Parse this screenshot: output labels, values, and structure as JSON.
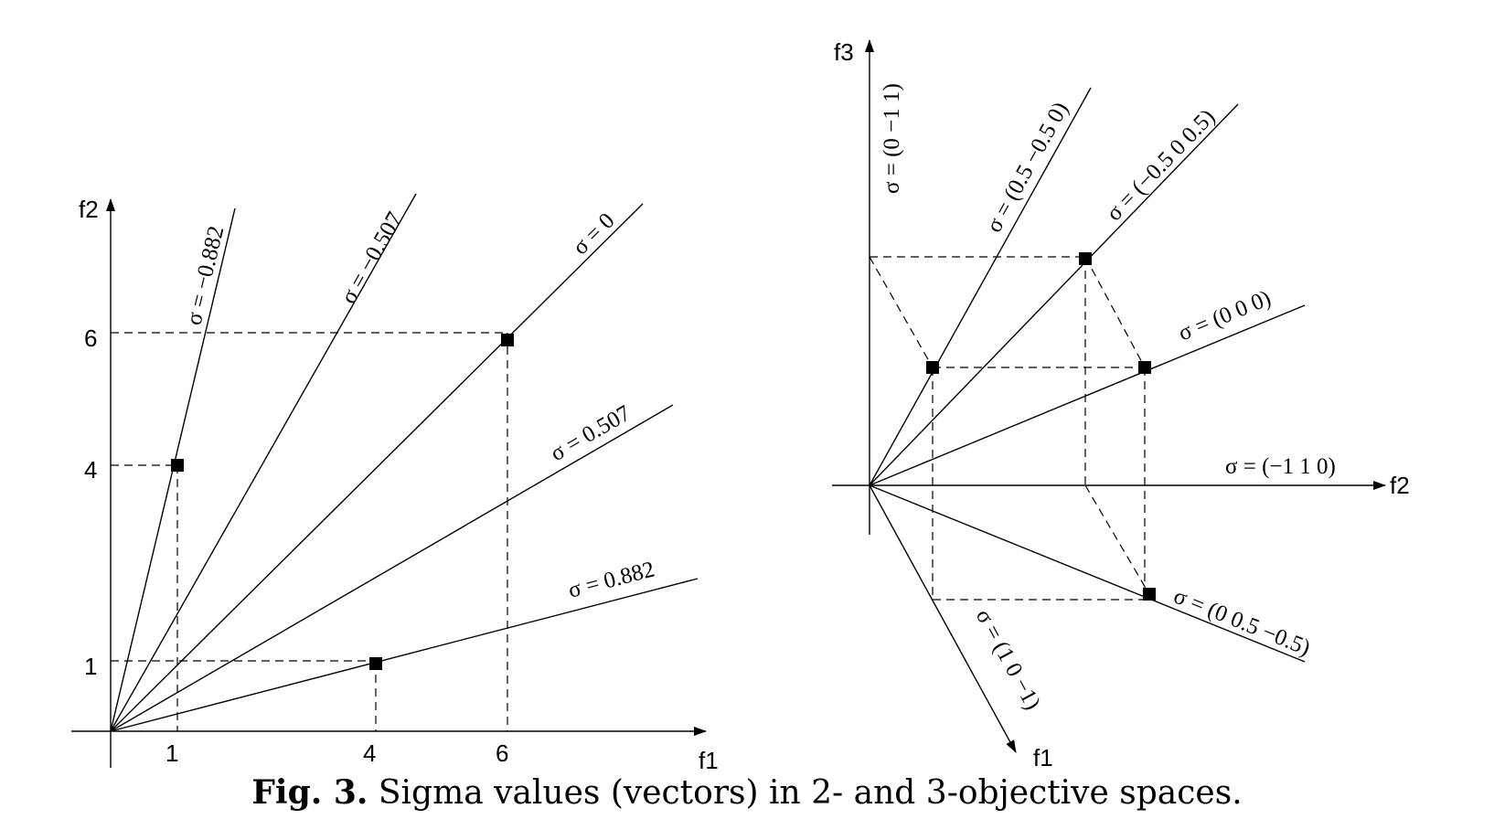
{
  "left_diagram": {
    "x_axis_label": "f1",
    "y_axis_label": "f2",
    "x_ticks": [
      "1",
      "4",
      "6"
    ],
    "y_ticks": [
      "1",
      "4",
      "6"
    ],
    "rays": [
      {
        "sigma_label": "σ = −0.882"
      },
      {
        "sigma_label": "σ = −0.507"
      },
      {
        "sigma_label": "σ = 0"
      },
      {
        "sigma_label": "σ = 0.507"
      },
      {
        "sigma_label": "σ = 0.882"
      }
    ],
    "points": [
      {
        "f1": 1,
        "f2": 4
      },
      {
        "f1": 6,
        "f2": 6
      },
      {
        "f1": 4,
        "f2": 1
      }
    ]
  },
  "right_diagram": {
    "axis_f1_label": "f1",
    "axis_f2_label": "f2",
    "axis_f3_label": "f3",
    "rays": [
      {
        "sigma_label": "σ = (0 −1 1)"
      },
      {
        "sigma_label": "σ = (0.5 −0.5 0)"
      },
      {
        "sigma_label": "σ = (−0.5 0 0.5)"
      },
      {
        "sigma_label": "σ = (0 0 0)"
      },
      {
        "sigma_label": "σ = (−1 1 0)"
      },
      {
        "sigma_label": "σ = (0 0.5 −0.5)"
      },
      {
        "sigma_label": "σ = (1 0 −1)"
      }
    ]
  },
  "caption": {
    "label": "Fig. 3.",
    "text": " Sigma values (vectors) in 2- and 3-objective spaces."
  }
}
